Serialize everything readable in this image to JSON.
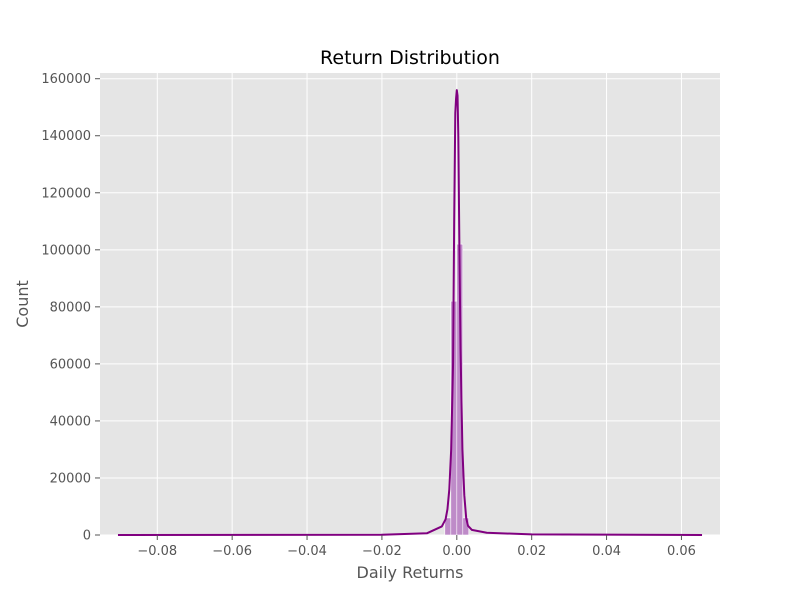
{
  "chart_data": {
    "type": "bar",
    "title": "Return Distribution",
    "xlabel": "Daily Returns",
    "ylabel": "Count",
    "xlim": [
      -0.0953,
      0.0703
    ],
    "ylim": [
      0,
      162000
    ],
    "x_ticks": [
      -0.08,
      -0.06,
      -0.04,
      -0.02,
      0.0,
      0.02,
      0.04,
      0.06
    ],
    "x_tick_labels": [
      "−0.08",
      "−0.06",
      "−0.04",
      "−0.02",
      "0.00",
      "0.02",
      "0.04",
      "0.06"
    ],
    "y_ticks": [
      0,
      20000,
      40000,
      60000,
      80000,
      100000,
      120000,
      140000,
      160000
    ],
    "y_tick_labels": [
      "0",
      "20000",
      "40000",
      "60000",
      "80000",
      "100000",
      "120000",
      "140000",
      "160000"
    ],
    "grid": true,
    "histogram": {
      "bin_width": 0.0016,
      "bins": [
        {
          "x0": -0.0032,
          "x1": -0.0016,
          "count": 6000
        },
        {
          "x0": -0.0016,
          "x1": 0.0,
          "count": 82000
        },
        {
          "x0": 0.0,
          "x1": 0.0016,
          "count": 102000
        },
        {
          "x0": 0.0016,
          "x1": 0.0032,
          "count": 6000
        }
      ]
    },
    "kde": {
      "x": [
        -0.0905,
        -0.02,
        -0.008,
        -0.004,
        -0.003,
        -0.0025,
        -0.002,
        -0.0015,
        -0.001,
        -0.0007,
        -0.0004,
        -0.0002,
        0.0,
        0.0002,
        0.0004,
        0.0007,
        0.001,
        0.0015,
        0.002,
        0.0025,
        0.003,
        0.004,
        0.008,
        0.02,
        0.0655
      ],
      "y": [
        0,
        100,
        600,
        3000,
        5500,
        9000,
        16000,
        30000,
        60000,
        110000,
        148000,
        153000,
        156000,
        154000,
        140000,
        100000,
        65000,
        30000,
        14000,
        6000,
        3200,
        1800,
        800,
        200,
        0
      ]
    },
    "colors": {
      "line": "#800080",
      "bar_fill": "#b77bc3",
      "plot_background": "#e5e5e5",
      "grid": "#ffffff"
    }
  }
}
